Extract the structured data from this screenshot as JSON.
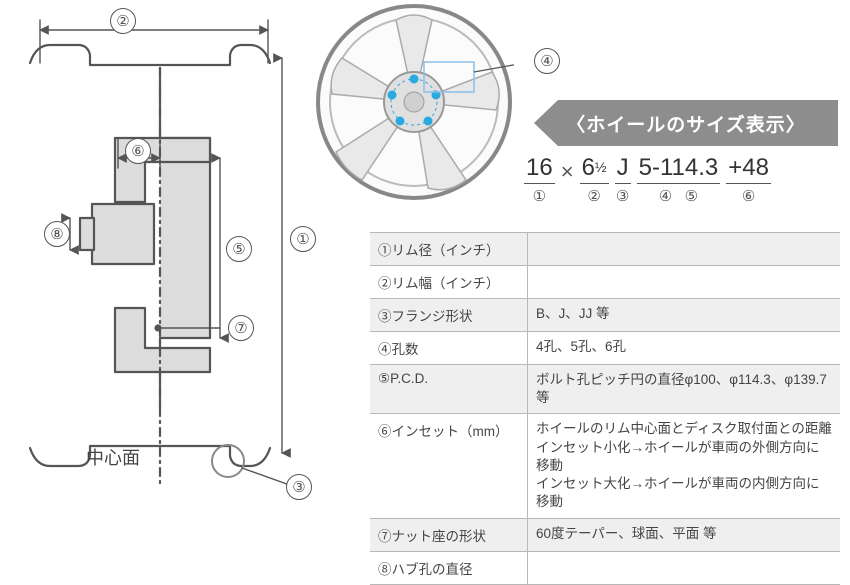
{
  "colors": {
    "line": "#555555",
    "lug": "#2aa9e0",
    "banner": "#8d8d8d",
    "border": "#b8b8b8",
    "alt_bg": "#efefef"
  },
  "cross_section": {
    "callouts": {
      "c1": "①",
      "c2": "②",
      "c3": "③",
      "c4": "④",
      "c5": "⑤",
      "c6": "⑥",
      "c7": "⑦",
      "c8": "⑧"
    },
    "center_face_label": "中心面"
  },
  "banner_text": "〈ホイールのサイズ表示〉",
  "formula": {
    "segments": [
      {
        "val": "16",
        "idx": "①"
      },
      {
        "op": "×"
      },
      {
        "val": "6½",
        "idx": "②"
      },
      {
        "val": "J",
        "idx": "③"
      },
      {
        "val": "5-114.3",
        "idx": "④⑤",
        "split_idx": [
          "④",
          "⑤"
        ]
      },
      {
        "val": "+48",
        "idx": "⑥"
      }
    ]
  },
  "table": {
    "rows": [
      {
        "alt": true,
        "l": "①リム径（インチ）",
        "r": ""
      },
      {
        "alt": false,
        "l": "②リム幅（インチ）",
        "r": ""
      },
      {
        "alt": true,
        "l": "③フランジ形状",
        "r": "B、J、JJ 等"
      },
      {
        "alt": false,
        "l": "④孔数",
        "r": "4孔、5孔、6孔"
      },
      {
        "alt": true,
        "l": "⑤P.C.D.",
        "r": "ボルト孔ピッチ円の直径φ100、φ114.3、φ139.7 等"
      },
      {
        "alt": false,
        "l": "⑥インセット（mm）",
        "r": "ホイールのリム中心面とディスク取付面との距離\nインセット小化→ホイールが車両の外側方向に移動\nインセット大化→ホイールが車両の内側方向に移動"
      },
      {
        "alt": true,
        "l": "⑦ナット座の形状",
        "r": "60度テーパー、球面、平面 等"
      },
      {
        "alt": false,
        "l": "⑧ハブ孔の直径",
        "r": ""
      }
    ]
  }
}
